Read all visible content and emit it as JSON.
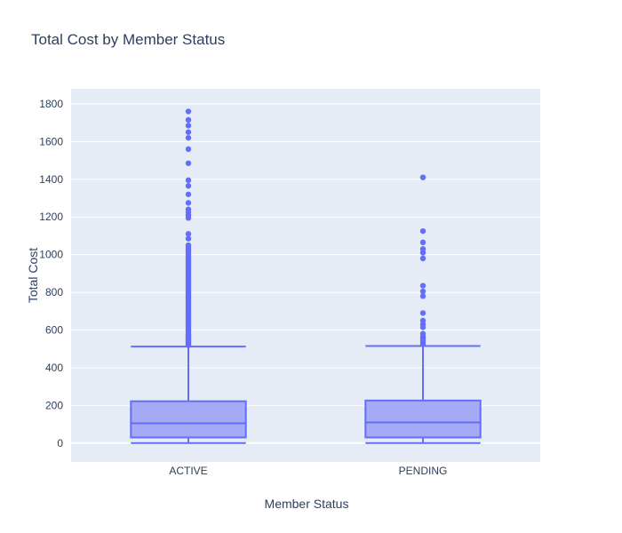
{
  "chart_data": {
    "type": "box",
    "title": "Total Cost by Member Status",
    "xlabel": "Member Status",
    "ylabel": "Total Cost",
    "ylim": [
      -100,
      1880
    ],
    "yticks": [
      0,
      200,
      400,
      600,
      800,
      1000,
      1200,
      1400,
      1600,
      1800
    ],
    "ytick_labels": [
      "0",
      "200",
      "400",
      "600",
      "800",
      "1000",
      "1200",
      "1400",
      "1600",
      "1800"
    ],
    "categories": [
      "ACTIVE",
      "PENDING"
    ],
    "grid": true,
    "colors": {
      "plot_bg": "#e5ecf6",
      "grid": "#ffffff",
      "box_fill": "#a4aaf5",
      "box_line": "#636efa",
      "text": "#2a3f5f"
    },
    "boxes": [
      {
        "category": "ACTIVE",
        "min": 0,
        "q1": 30,
        "median": 105,
        "q3": 222,
        "upper_fence": 512,
        "outliers": [
          520,
          525,
          530,
          535,
          540,
          545,
          550,
          555,
          560,
          565,
          570,
          575,
          580,
          590,
          600,
          610,
          620,
          630,
          640,
          650,
          660,
          670,
          680,
          690,
          700,
          710,
          720,
          730,
          740,
          750,
          760,
          770,
          780,
          790,
          800,
          810,
          820,
          830,
          840,
          850,
          860,
          870,
          880,
          890,
          900,
          910,
          920,
          930,
          940,
          950,
          960,
          970,
          980,
          990,
          1000,
          1010,
          1020,
          1030,
          1040,
          1050,
          1085,
          1110,
          1195,
          1210,
          1225,
          1240,
          1275,
          1320,
          1365,
          1395,
          1485,
          1560,
          1620,
          1650,
          1685,
          1715,
          1760
        ]
      },
      {
        "category": "PENDING",
        "min": 0,
        "q1": 30,
        "median": 110,
        "q3": 226,
        "upper_fence": 515,
        "outliers": [
          525,
          535,
          545,
          555,
          565,
          580,
          615,
          630,
          650,
          690,
          780,
          805,
          835,
          980,
          1010,
          1030,
          1065,
          1125,
          1410
        ]
      }
    ]
  }
}
